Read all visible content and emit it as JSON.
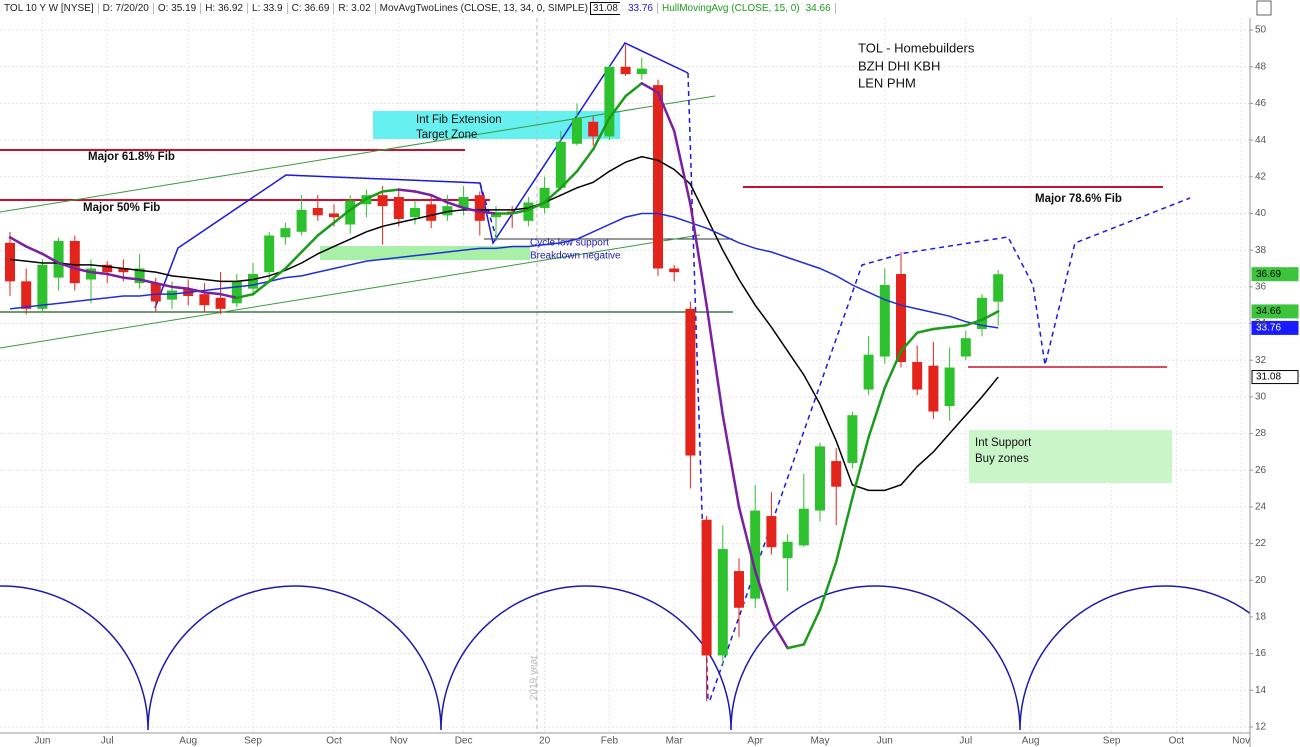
{
  "header": {
    "symbol": "TOL 10 Y W [NYSE]",
    "fields": [
      "D: 7/20/20",
      "O: 35.19",
      "H: 36.92",
      "L: 33.9",
      "C: 36.69",
      "R: 3.02"
    ],
    "study1": "MovAvgTwoLines (CLOSE, 13, 34, 0, SIMPLE)",
    "study1_values": [
      "31.08",
      "33.76"
    ],
    "study2": "HullMovingAvg (CLOSE, 15, 0)",
    "study2_value": "34.66"
  },
  "annotations": {
    "title_lines": [
      "TOL - Homebuilders",
      "BZH DHI KBH",
      "LEN PHM"
    ],
    "fib_618": "Major 61.8% Fib",
    "fib_50": "Major 50% Fib",
    "fib_ext": [
      "Int Fib Extension",
      "Target Zone"
    ],
    "cycle": [
      "Cycle low support",
      "Breakdown negative"
    ],
    "fib_786": "Major 78.6% Fib",
    "support": [
      "Int Support",
      "Buy zones"
    ],
    "year": "2019 year"
  },
  "chart_data": {
    "type": "candlestick",
    "categories": [
      null,
      null,
      "Jun",
      null,
      null,
      null,
      "Jul",
      null,
      null,
      null,
      null,
      "Aug",
      null,
      null,
      null,
      "Sep",
      null,
      null,
      null,
      null,
      "Oct",
      null,
      null,
      null,
      "Nov",
      null,
      null,
      null,
      "Dec",
      null,
      null,
      null,
      null,
      "20",
      null,
      null,
      null,
      "Feb",
      null,
      null,
      null,
      "Mar",
      null,
      null,
      null,
      null,
      "Apr",
      null,
      null,
      null,
      "May",
      null,
      null,
      null,
      "Jun",
      null,
      null,
      null,
      null,
      "Jul",
      null,
      null,
      null,
      "Aug",
      null,
      null,
      null,
      null,
      "Sep",
      null,
      null,
      null,
      "Oct",
      null,
      null,
      null,
      "Nov",
      null
    ],
    "open": [
      38.4,
      36.3,
      34.8,
      36.5,
      38.5,
      36.4,
      37.2,
      37.0,
      36.2,
      36.2,
      35.3,
      35.9,
      35.6,
      35.4,
      35.1,
      35.9,
      36.8,
      38.7,
      39.0,
      40.3,
      40.0,
      39.4,
      40.5,
      41.0,
      40.9,
      39.8,
      40.5,
      39.9,
      40.3,
      41.0,
      39.8,
      40.1,
      39.6,
      40.3,
      41.4,
      43.8,
      45.0,
      44.2,
      48.0,
      47.6,
      47.0,
      37.0,
      34.8,
      23.3,
      15.9,
      20.5,
      19.0,
      23.5,
      21.2,
      21.9,
      23.8,
      26.5,
      26.4,
      30.4,
      32.2,
      36.7,
      31.9,
      31.7,
      29.5,
      32.2,
      33.7,
      35.19,
      null,
      null,
      null,
      null,
      null,
      null,
      null,
      null,
      null,
      null,
      null,
      null,
      null,
      null,
      null,
      null
    ],
    "high": [
      39.0,
      37.0,
      37.5,
      38.7,
      38.8,
      37.5,
      37.4,
      37.5,
      37.8,
      36.5,
      36.3,
      36.4,
      36.2,
      36.8,
      36.7,
      37.3,
      39.0,
      39.5,
      41.0,
      41.0,
      40.5,
      41.0,
      41.3,
      41.5,
      41.3,
      40.7,
      41.0,
      41.0,
      41.5,
      41.2,
      40.4,
      40.4,
      40.9,
      42.0,
      44.5,
      46.0,
      45.3,
      48.1,
      49.2,
      48.5,
      47.3,
      37.2,
      35.2,
      23.5,
      23.0,
      21.2,
      25.2,
      24.8,
      22.5,
      25.8,
      27.5,
      27.2,
      29.2,
      33.3,
      37.0,
      37.9,
      32.8,
      33.0,
      32.7,
      33.6,
      35.6,
      36.92,
      null,
      null,
      null,
      null,
      null,
      null,
      null,
      null,
      null,
      null,
      null,
      null,
      null,
      null,
      null,
      null
    ],
    "low": [
      35.5,
      34.5,
      34.6,
      35.8,
      35.8,
      35.1,
      36.2,
      36.3,
      35.9,
      34.6,
      34.8,
      35.0,
      34.6,
      34.5,
      34.9,
      35.5,
      36.2,
      38.3,
      38.8,
      39.6,
      39.3,
      38.9,
      39.8,
      38.3,
      39.3,
      39.4,
      39.2,
      39.6,
      39.9,
      38.8,
      38.5,
      39.2,
      39.3,
      40.0,
      41.3,
      43.7,
      43.7,
      44.0,
      47.5,
      47.3,
      36.6,
      36.3,
      25.0,
      13.4,
      15.4,
      16.9,
      18.5,
      21.4,
      19.4,
      21.8,
      23.2,
      23.0,
      26.1,
      30.1,
      31.8,
      31.6,
      30.1,
      28.8,
      28.7,
      32.0,
      33.3,
      33.9,
      null,
      null,
      null,
      null,
      null,
      null,
      null,
      null,
      null,
      null,
      null,
      null,
      null,
      null,
      null,
      null
    ],
    "close": [
      36.3,
      34.8,
      37.2,
      38.5,
      36.2,
      37.0,
      36.8,
      36.8,
      37.0,
      35.2,
      35.8,
      35.5,
      35.0,
      34.8,
      36.3,
      36.7,
      38.8,
      39.2,
      40.2,
      39.9,
      39.8,
      40.7,
      41.0,
      40.4,
      39.7,
      40.3,
      39.6,
      40.4,
      40.9,
      39.6,
      40.0,
      40.0,
      40.6,
      41.4,
      43.9,
      45.2,
      44.2,
      48.0,
      47.6,
      47.9,
      37.0,
      36.8,
      26.8,
      15.9,
      21.7,
      18.5,
      23.8,
      21.8,
      22.1,
      23.9,
      27.3,
      25.1,
      29.0,
      32.3,
      36.1,
      31.9,
      30.4,
      29.2,
      31.6,
      33.2,
      35.4,
      36.69,
      null,
      null,
      null,
      null,
      null,
      null,
      null,
      null,
      null,
      null,
      null,
      null,
      null,
      null,
      null,
      null
    ],
    "up_color": "#2ec12e",
    "down_color": "#e3241c",
    "series": [
      {
        "color": "#000000",
        "values": [
          37.5,
          37.4,
          37.3,
          37.3,
          37.2,
          37.2,
          37.1,
          37.0,
          36.9,
          36.8,
          36.6,
          36.5,
          36.4,
          36.3,
          36.3,
          36.4,
          36.6,
          36.9,
          37.3,
          37.8,
          38.2,
          38.6,
          39.0,
          39.3,
          39.5,
          39.7,
          39.9,
          40.1,
          40.2,
          40.2,
          40.2,
          40.2,
          40.3,
          40.6,
          41.0,
          41.4,
          41.7,
          42.3,
          42.8,
          43.1,
          42.9,
          42.4,
          41.6,
          39.8,
          38.0,
          36.4,
          35.0,
          33.8,
          32.5,
          31.2,
          29.6,
          27.6,
          25.2,
          24.9,
          24.9,
          25.2,
          26.2,
          27.0,
          28.0,
          29.0,
          30.0,
          31.08,
          null,
          null,
          null,
          null,
          null,
          null,
          null,
          null,
          null,
          null,
          null,
          null,
          null,
          null,
          null,
          null
        ]
      },
      {
        "color": "#1f2fd6",
        "values": [
          34.8,
          34.9,
          35.0,
          35.1,
          35.2,
          35.3,
          35.4,
          35.5,
          35.5,
          35.6,
          35.6,
          35.7,
          35.8,
          35.9,
          36.0,
          36.1,
          36.3,
          36.5,
          36.6,
          36.8,
          37.0,
          37.2,
          37.4,
          37.5,
          37.6,
          37.7,
          37.8,
          37.9,
          38.0,
          38.1,
          38.1,
          38.2,
          38.2,
          38.3,
          38.4,
          38.6,
          39.0,
          39.4,
          39.8,
          40.0,
          40.0,
          39.8,
          39.5,
          39.2,
          38.8,
          38.4,
          38.1,
          37.9,
          37.6,
          37.3,
          37.0,
          36.6,
          36.1,
          35.7,
          35.3,
          35.0,
          34.8,
          34.6,
          34.4,
          34.1,
          33.9,
          33.76,
          null,
          null,
          null,
          null,
          null,
          null,
          null,
          null,
          null,
          null,
          null,
          null,
          null,
          null,
          null,
          null
        ]
      },
      {
        "color": "#1a9c1a",
        "color_down": "#7a1fa0",
        "values": [
          38.7,
          38.2,
          37.8,
          37.3,
          37.0,
          36.8,
          36.7,
          36.5,
          36.4,
          36.2,
          36.0,
          35.9,
          35.7,
          35.6,
          35.4,
          35.6,
          36.3,
          37.0,
          37.9,
          38.8,
          39.5,
          40.2,
          40.8,
          41.2,
          41.3,
          41.2,
          41.0,
          40.6,
          40.3,
          40.1,
          40.0,
          40.0,
          40.2,
          40.6,
          41.4,
          42.3,
          43.5,
          45.2,
          46.4,
          47.1,
          46.6,
          44.5,
          40.5,
          35.0,
          29.0,
          24.0,
          20.5,
          17.8,
          16.3,
          16.5,
          18.4,
          21.0,
          24.5,
          27.8,
          30.5,
          32.5,
          33.5,
          33.7,
          33.8,
          33.9,
          34.2,
          34.66,
          null,
          null,
          null,
          null,
          null,
          null,
          null,
          null,
          null,
          null,
          null,
          null,
          null,
          null,
          null,
          null
        ]
      }
    ],
    "price_tags": [
      {
        "value": 36.69,
        "color": "#3cc43c"
      },
      {
        "value": 34.66,
        "color": "#3cc43c"
      },
      {
        "value": 33.76,
        "color": "#1a1aff"
      },
      {
        "value": 31.08,
        "color": "#ffffff"
      }
    ],
    "ylim": [
      11.67,
      50.66
    ],
    "yticks": [
      12,
      14,
      16,
      18,
      20,
      22,
      24,
      26,
      28,
      30,
      32,
      34,
      36,
      38,
      40,
      42,
      44,
      46,
      48,
      50
    ],
    "grid": true
  }
}
